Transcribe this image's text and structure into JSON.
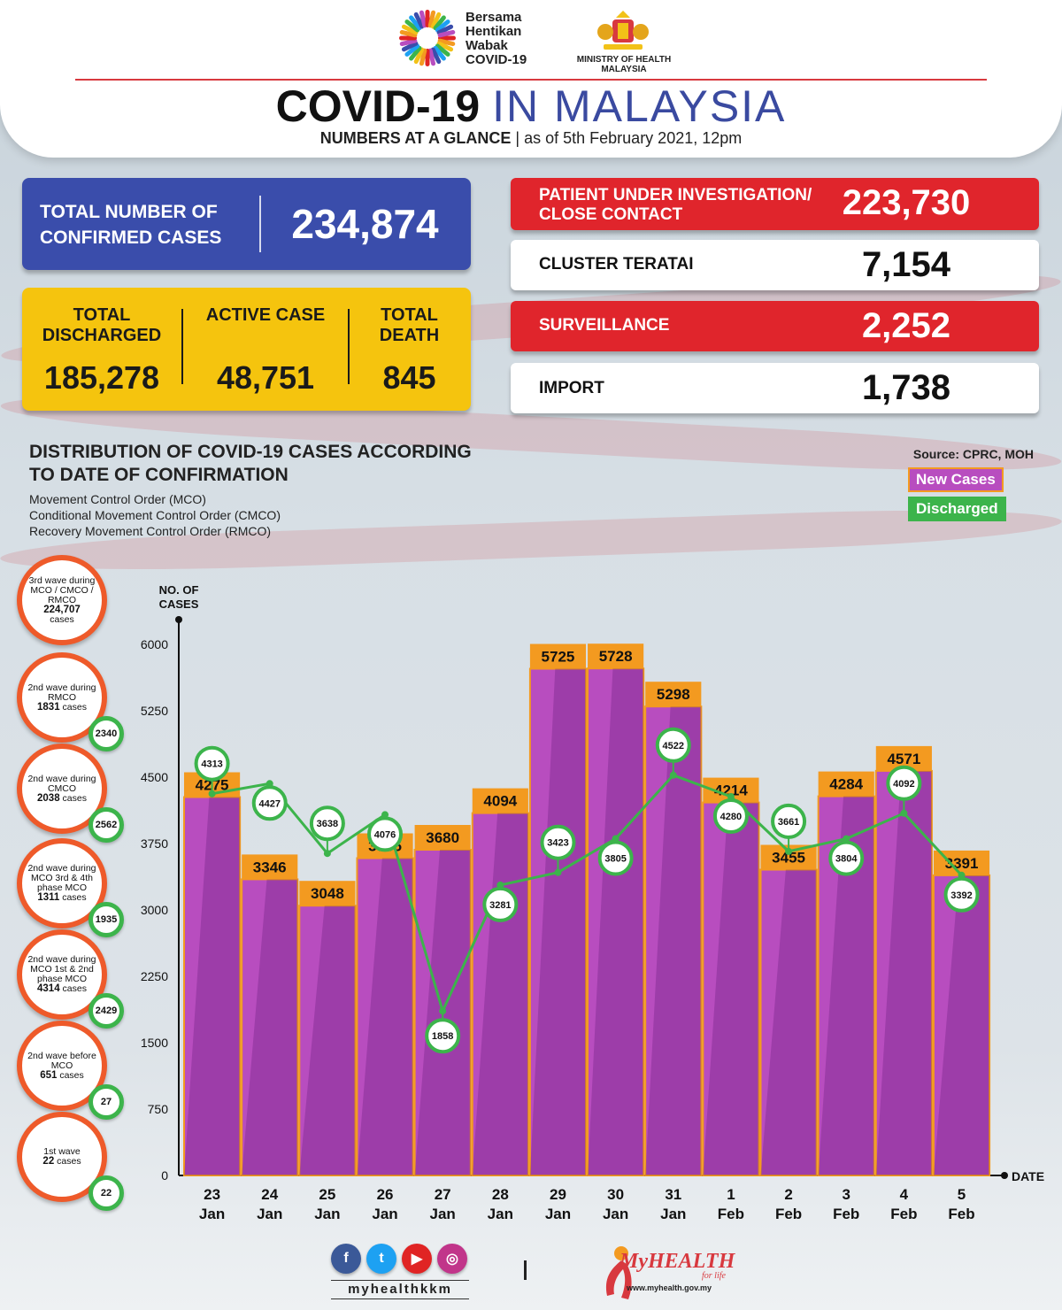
{
  "header": {
    "campaign_lines": [
      "Bersama",
      "Hentikan",
      "Wabak",
      "COVID-19"
    ],
    "ministry": "MINISTRY OF HEALTH MALAYSIA",
    "title_bold": "COVID-19",
    "title_light": "IN MALAYSIA",
    "subtitle_strong": "NUMBERS AT A GLANCE",
    "subtitle_date": "as of 5th February 2021, 12pm"
  },
  "totals": {
    "confirmed_label": "TOTAL NUMBER OF CONFIRMED CASES",
    "confirmed_value": "234,874",
    "discharged_label": "TOTAL DISCHARGED",
    "discharged_value": "185,278",
    "active_label": "ACTIVE CASE",
    "active_value": "48,751",
    "death_label": "TOTAL DEATH",
    "death_value": "845"
  },
  "breakdown": [
    {
      "label": "PATIENT UNDER INVESTIGATION/ CLOSE CONTACT",
      "value": "223,730"
    },
    {
      "label": "CLUSTER TERATAI",
      "value": "7,154"
    },
    {
      "label": "SURVEILLANCE",
      "value": "2,252"
    },
    {
      "label": "IMPORT",
      "value": "1,738"
    }
  ],
  "distribution": {
    "title": "DISTRIBUTION OF COVID-19 CASES ACCORDING TO DATE OF CONFIRMATION",
    "notes": [
      "Movement Control Order (MCO)",
      "Conditional Movement Control Order (CMCO)",
      "Recovery Movement Control Order (RMCO)"
    ],
    "source": "Source: CPRC, MOH"
  },
  "waves": [
    {
      "label": "3rd wave during MCO / CMCO / RMCO",
      "count": "224,707",
      "unit": "cases",
      "discharged": ""
    },
    {
      "label": "2nd wave during RMCO",
      "count": "1831",
      "unit": "cases",
      "discharged": "2340"
    },
    {
      "label": "2nd wave during CMCO",
      "count": "2038",
      "unit": "cases",
      "discharged": "2562"
    },
    {
      "label": "2nd wave during MCO 3rd & 4th phase MCO",
      "count": "1311",
      "unit": "cases",
      "discharged": "1935"
    },
    {
      "label": "2nd wave during MCO 1st & 2nd phase MCO",
      "count": "4314",
      "unit": "cases",
      "discharged": "2429"
    },
    {
      "label": "2nd wave before MCO",
      "count": "651",
      "unit": "cases",
      "discharged": "27"
    },
    {
      "label": "1st wave",
      "count": "22",
      "unit": "cases",
      "discharged": "22"
    }
  ],
  "chart_data": {
    "type": "bar",
    "categories": [
      "23 Jan",
      "24 Jan",
      "25 Jan",
      "26 Jan",
      "27 Jan",
      "28 Jan",
      "29 Jan",
      "30 Jan",
      "31 Jan",
      "1 Feb",
      "2 Feb",
      "3 Feb",
      "4 Feb",
      "5 Feb"
    ],
    "series": [
      {
        "name": "New Cases",
        "type": "bar",
        "color": "#b84dbf",
        "values": [
          4275,
          3346,
          3048,
          3585,
          3680,
          4094,
          5725,
          5728,
          5298,
          4214,
          3455,
          4284,
          4571,
          3391
        ]
      },
      {
        "name": "Discharged",
        "type": "line",
        "color": "#3cb44b",
        "values": [
          4313,
          4427,
          3638,
          4076,
          1858,
          3281,
          3423,
          3805,
          4522,
          4280,
          3661,
          3804,
          4092,
          3392
        ]
      }
    ],
    "ylabel": "NO. OF CASES",
    "xlabel": "DATE",
    "ylim": [
      0,
      6000
    ],
    "yticks": [
      0,
      750,
      1500,
      2250,
      3000,
      3750,
      4500,
      5250,
      6000
    ],
    "grid": false,
    "legend": "top-right"
  }
}
